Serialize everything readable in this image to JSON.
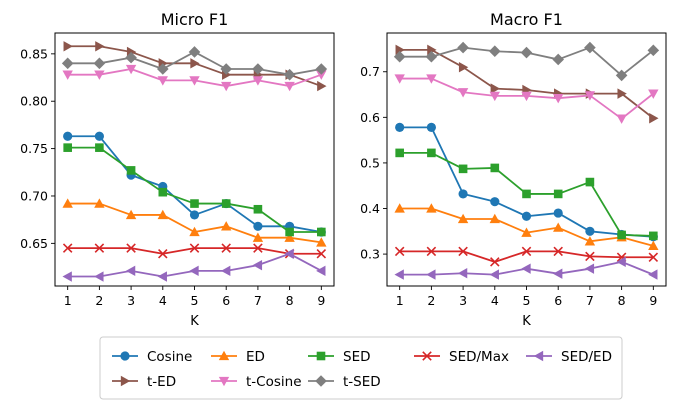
{
  "chart_data": [
    {
      "type": "line",
      "title": "Micro F1",
      "xlabel": "K",
      "ylabel": "",
      "x": [
        1,
        2,
        3,
        4,
        5,
        6,
        7,
        8,
        9
      ],
      "xticks": [
        1,
        2,
        3,
        4,
        5,
        6,
        7,
        8,
        9
      ],
      "ylim": [
        0.605,
        0.872
      ],
      "yticks": [
        0.65,
        0.7,
        0.75,
        0.8,
        0.85
      ],
      "ytick_labels": [
        "0.65",
        "0.70",
        "0.75",
        "0.80",
        "0.85"
      ],
      "grid": false,
      "series": [
        {
          "name": "Cosine",
          "values": [
            0.763,
            0.763,
            0.722,
            0.71,
            0.68,
            0.692,
            0.668,
            0.668,
            0.662
          ]
        },
        {
          "name": "ED",
          "values": [
            0.692,
            0.692,
            0.68,
            0.68,
            0.662,
            0.668,
            0.656,
            0.656,
            0.651
          ]
        },
        {
          "name": "SED",
          "values": [
            0.751,
            0.751,
            0.727,
            0.704,
            0.692,
            0.692,
            0.686,
            0.662,
            0.662
          ]
        },
        {
          "name": "SED/Max",
          "values": [
            0.645,
            0.645,
            0.645,
            0.639,
            0.645,
            0.645,
            0.645,
            0.639,
            0.639
          ]
        },
        {
          "name": "SED/ED",
          "values": [
            0.615,
            0.615,
            0.621,
            0.615,
            0.621,
            0.621,
            0.627,
            0.639,
            0.621
          ]
        },
        {
          "name": "t-ED",
          "values": [
            0.858,
            0.858,
            0.852,
            0.84,
            0.84,
            0.828,
            0.828,
            0.828,
            0.816
          ]
        },
        {
          "name": "t-Cosine",
          "values": [
            0.828,
            0.828,
            0.834,
            0.822,
            0.822,
            0.816,
            0.822,
            0.816,
            0.828
          ]
        },
        {
          "name": "t-SED",
          "values": [
            0.84,
            0.84,
            0.846,
            0.834,
            0.852,
            0.834,
            0.834,
            0.828,
            0.834
          ]
        }
      ]
    },
    {
      "type": "line",
      "title": "Macro F1",
      "xlabel": "K",
      "ylabel": "",
      "x": [
        1,
        2,
        3,
        4,
        5,
        6,
        7,
        8,
        9
      ],
      "xticks": [
        1,
        2,
        3,
        4,
        5,
        6,
        7,
        8,
        9
      ],
      "ylim": [
        0.23,
        0.785
      ],
      "yticks": [
        0.3,
        0.4,
        0.5,
        0.6,
        0.7
      ],
      "ytick_labels": [
        "0.3",
        "0.4",
        "0.5",
        "0.6",
        "0.7"
      ],
      "grid": false,
      "series": [
        {
          "name": "Cosine",
          "values": [
            0.578,
            0.578,
            0.432,
            0.415,
            0.383,
            0.39,
            0.35,
            0.343,
            0.338
          ]
        },
        {
          "name": "ED",
          "values": [
            0.4,
            0.4,
            0.377,
            0.377,
            0.347,
            0.358,
            0.328,
            0.337,
            0.318
          ]
        },
        {
          "name": "SED",
          "values": [
            0.522,
            0.522,
            0.487,
            0.489,
            0.432,
            0.432,
            0.458,
            0.342,
            0.34
          ]
        },
        {
          "name": "SED/Max",
          "values": [
            0.306,
            0.306,
            0.306,
            0.283,
            0.306,
            0.306,
            0.295,
            0.293,
            0.293
          ]
        },
        {
          "name": "SED/ED",
          "values": [
            0.255,
            0.255,
            0.258,
            0.255,
            0.268,
            0.257,
            0.268,
            0.283,
            0.255
          ]
        },
        {
          "name": "t-ED",
          "values": [
            0.748,
            0.748,
            0.71,
            0.663,
            0.66,
            0.652,
            0.652,
            0.652,
            0.598
          ]
        },
        {
          "name": "t-Cosine",
          "values": [
            0.685,
            0.685,
            0.655,
            0.647,
            0.647,
            0.642,
            0.648,
            0.597,
            0.652
          ]
        },
        {
          "name": "t-SED",
          "values": [
            0.733,
            0.733,
            0.753,
            0.745,
            0.742,
            0.727,
            0.753,
            0.692,
            0.747
          ]
        }
      ]
    }
  ],
  "legend": {
    "placement": "bottom",
    "columns": 5,
    "entries": [
      "Cosine",
      "ED",
      "SED",
      "SED/Max",
      "SED/ED",
      "t-ED",
      "t-Cosine",
      "t-SED"
    ]
  },
  "styles": {
    "Cosine": {
      "color": "#1f77b4",
      "marker": "circle"
    },
    "ED": {
      "color": "#ff7f0e",
      "marker": "triangle-up"
    },
    "SED": {
      "color": "#2ca02c",
      "marker": "square"
    },
    "SED/Max": {
      "color": "#d62728",
      "marker": "x"
    },
    "SED/ED": {
      "color": "#9467bd",
      "marker": "triangle-left"
    },
    "t-ED": {
      "color": "#8c564b",
      "marker": "triangle-right"
    },
    "t-Cosine": {
      "color": "#e377c2",
      "marker": "triangle-down"
    },
    "t-SED": {
      "color": "#7f7f7f",
      "marker": "diamond"
    }
  }
}
